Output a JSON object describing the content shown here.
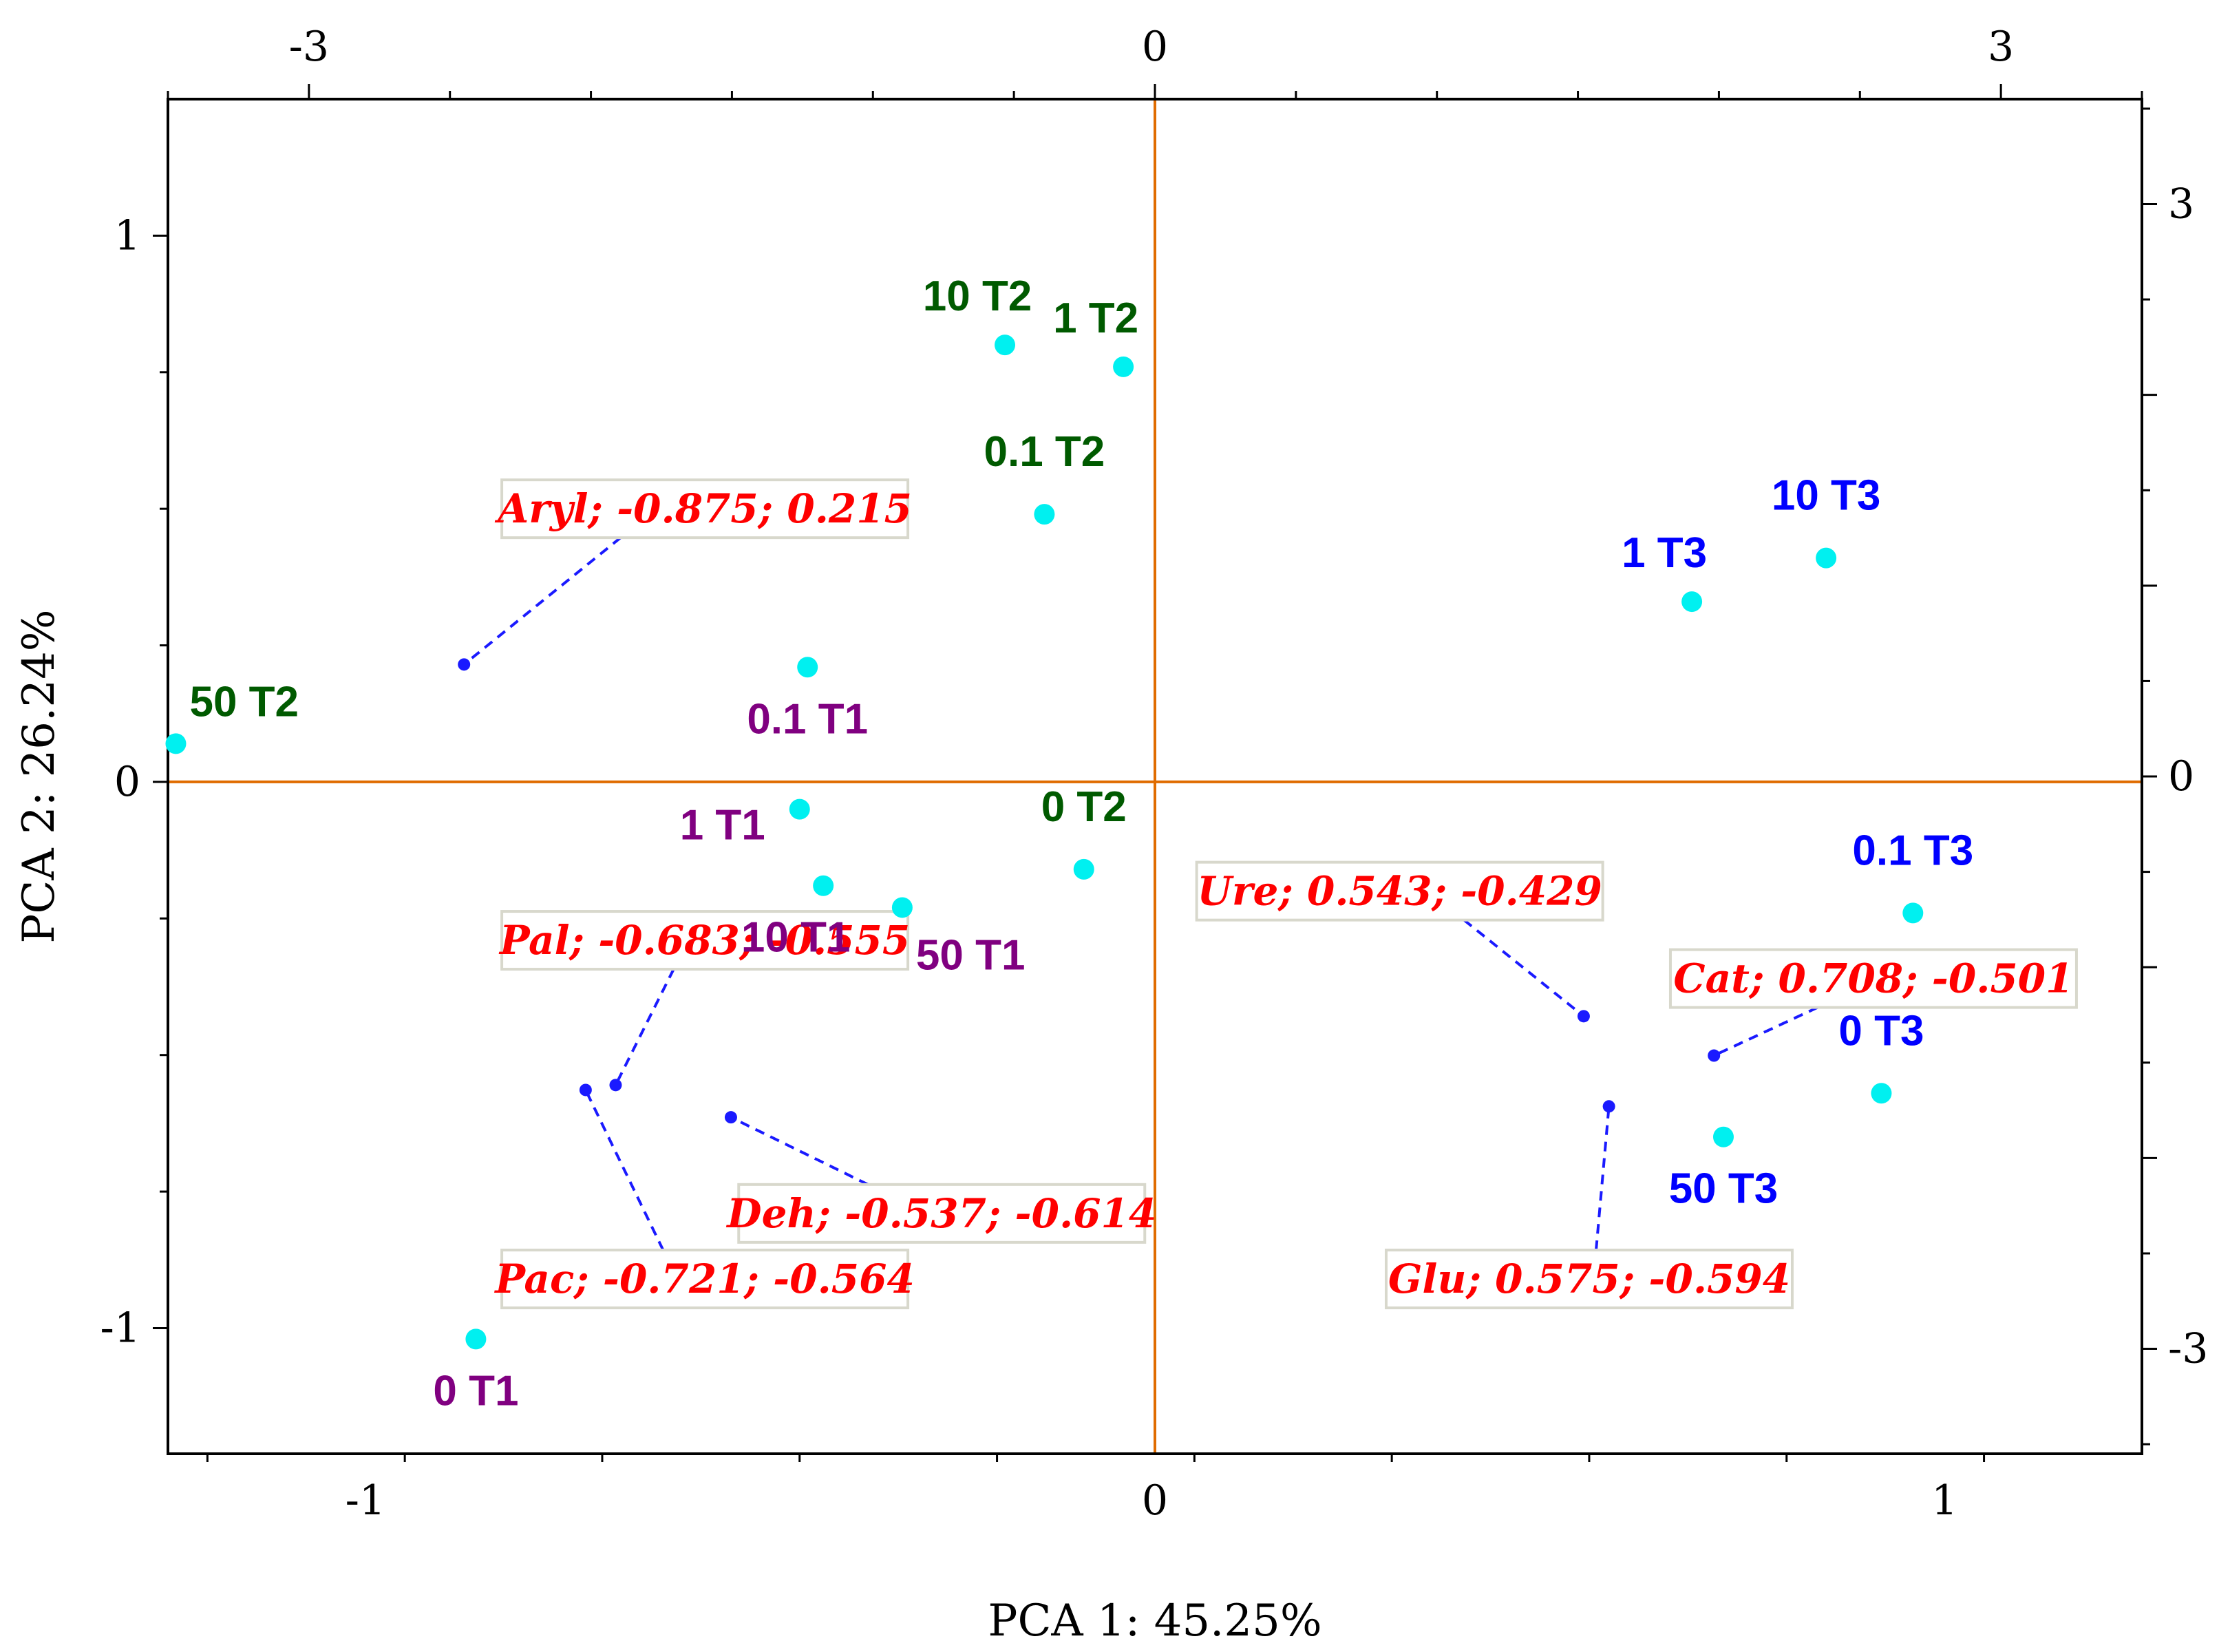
{
  "chart_data": {
    "type": "scatter",
    "title": "",
    "xlabel": "PCA 1: 45.25%",
    "ylabel": "PCA 2: 26.24%",
    "xlim": [
      -1.25,
      1.25
    ],
    "ylim": [
      -1.23,
      1.25
    ],
    "x_ticks": [
      -1,
      0,
      1
    ],
    "y_ticks": [
      -1,
      0,
      1
    ],
    "x_tick_labels": [
      "-1",
      "0",
      "1"
    ],
    "y_tick_labels": [
      "-1",
      "0",
      "1"
    ],
    "top_xlim": [
      -3.5,
      3.5
    ],
    "top_ticks": [
      -3,
      0,
      3
    ],
    "top_tick_labels": [
      "-3",
      "0",
      "3"
    ],
    "right_ylim": [
      -3.55,
      3.55
    ],
    "right_ticks": [
      -3,
      0,
      3
    ],
    "right_tick_labels": [
      "-3",
      "0",
      "3"
    ],
    "grid": false,
    "origin_lines_color": "#e06c00",
    "marker_color": "#00f0f0",
    "group_colors": {
      "T1": "#800080",
      "T2": "#005a00",
      "T3": "#0000ff"
    },
    "points": [
      {
        "label": "10 T2",
        "group": "T2",
        "x": -0.19,
        "y": 0.8,
        "label_pos": "above-left"
      },
      {
        "label": "1 T2",
        "group": "T2",
        "x": -0.04,
        "y": 0.76,
        "label_pos": "above-left"
      },
      {
        "label": "0.1 T2",
        "group": "T2",
        "x": -0.14,
        "y": 0.49,
        "label_pos": "above"
      },
      {
        "label": "50 T2",
        "group": "T2",
        "x": -1.24,
        "y": 0.07,
        "label_pos": "above-right"
      },
      {
        "label": "0 T2",
        "group": "T2",
        "x": -0.09,
        "y": -0.16,
        "label_pos": "above"
      },
      {
        "label": "0.1 T1",
        "group": "T1",
        "x": -0.44,
        "y": 0.21,
        "label_pos": "below"
      },
      {
        "label": "1 T1",
        "group": "T1",
        "x": -0.45,
        "y": -0.05,
        "label_pos": "left"
      },
      {
        "label": "10 T1",
        "group": "T1",
        "x": -0.42,
        "y": -0.19,
        "label_pos": "below-left"
      },
      {
        "label": "50 T1",
        "group": "T1",
        "x": -0.32,
        "y": -0.23,
        "label_pos": "below-right"
      },
      {
        "label": "0 T1",
        "group": "T1",
        "x": -0.86,
        "y": -1.02,
        "label_pos": "below"
      },
      {
        "label": "1 T3",
        "group": "T3",
        "x": 0.68,
        "y": 0.33,
        "label_pos": "above-left"
      },
      {
        "label": "10 T3",
        "group": "T3",
        "x": 0.85,
        "y": 0.41,
        "label_pos": "above"
      },
      {
        "label": "0.1 T3",
        "group": "T3",
        "x": 0.96,
        "y": -0.24,
        "label_pos": "above"
      },
      {
        "label": "0 T3",
        "group": "T3",
        "x": 0.92,
        "y": -0.57,
        "label_pos": "above"
      },
      {
        "label": "50 T3",
        "group": "T3",
        "x": 0.72,
        "y": -0.65,
        "label_pos": "below"
      }
    ],
    "loadings": [
      {
        "label": "Aryl; -0.875; 0.215",
        "x": -0.875,
        "y": 0.215,
        "box_x": -0.57,
        "box_y": 0.5
      },
      {
        "label": "Pal; -0.683; -0.555",
        "x": -0.683,
        "y": -0.555,
        "box_x": -0.57,
        "box_y": -0.29
      },
      {
        "label": "Pac; -0.721; -0.564",
        "x": -0.721,
        "y": -0.564,
        "box_x": -0.57,
        "box_y": -0.91
      },
      {
        "label": "Deh; -0.537; -0.614",
        "x": -0.537,
        "y": -0.614,
        "box_x": -0.27,
        "box_y": -0.79
      },
      {
        "label": "Ure; 0.543; -0.429",
        "x": 0.543,
        "y": -0.429,
        "box_x": 0.31,
        "box_y": -0.2
      },
      {
        "label": "Cat; 0.708; -0.501",
        "x": 0.708,
        "y": -0.501,
        "box_x": 0.91,
        "box_y": -0.36
      },
      {
        "label": "Glu; 0.575; -0.594",
        "x": 0.575,
        "y": -0.594,
        "box_x": 0.55,
        "box_y": -0.91
      }
    ]
  }
}
